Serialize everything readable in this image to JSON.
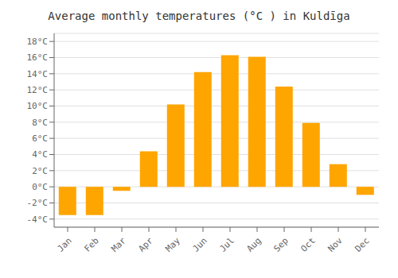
{
  "chart_data": {
    "type": "bar",
    "title": "Average monthly temperatures (°C ) in Kuldīga",
    "categories": [
      "Jan",
      "Feb",
      "Mar",
      "Apr",
      "May",
      "Jun",
      "Jul",
      "Aug",
      "Sep",
      "Oct",
      "Nov",
      "Dec"
    ],
    "values": [
      -3.5,
      -3.5,
      -0.5,
      4.4,
      10.2,
      14.2,
      16.3,
      16.1,
      12.4,
      7.9,
      2.8,
      -1.0
    ],
    "color": "#FFA500",
    "ylim": [
      -5,
      19
    ],
    "yticks": [
      {
        "value": -4,
        "label": "-4°C"
      },
      {
        "value": -2,
        "label": "-2°C"
      },
      {
        "value": 0,
        "label": "0°C"
      },
      {
        "value": 2,
        "label": "2°C"
      },
      {
        "value": 4,
        "label": "4°C"
      },
      {
        "value": 6,
        "label": "6°C"
      },
      {
        "value": 8,
        "label": "8°C"
      },
      {
        "value": 10,
        "label": "10°C"
      },
      {
        "value": 12,
        "label": "12°C"
      },
      {
        "value": 14,
        "label": "14°C"
      },
      {
        "value": 16,
        "label": "16°C"
      },
      {
        "value": 18,
        "label": "18°C"
      }
    ],
    "grid": true
  }
}
